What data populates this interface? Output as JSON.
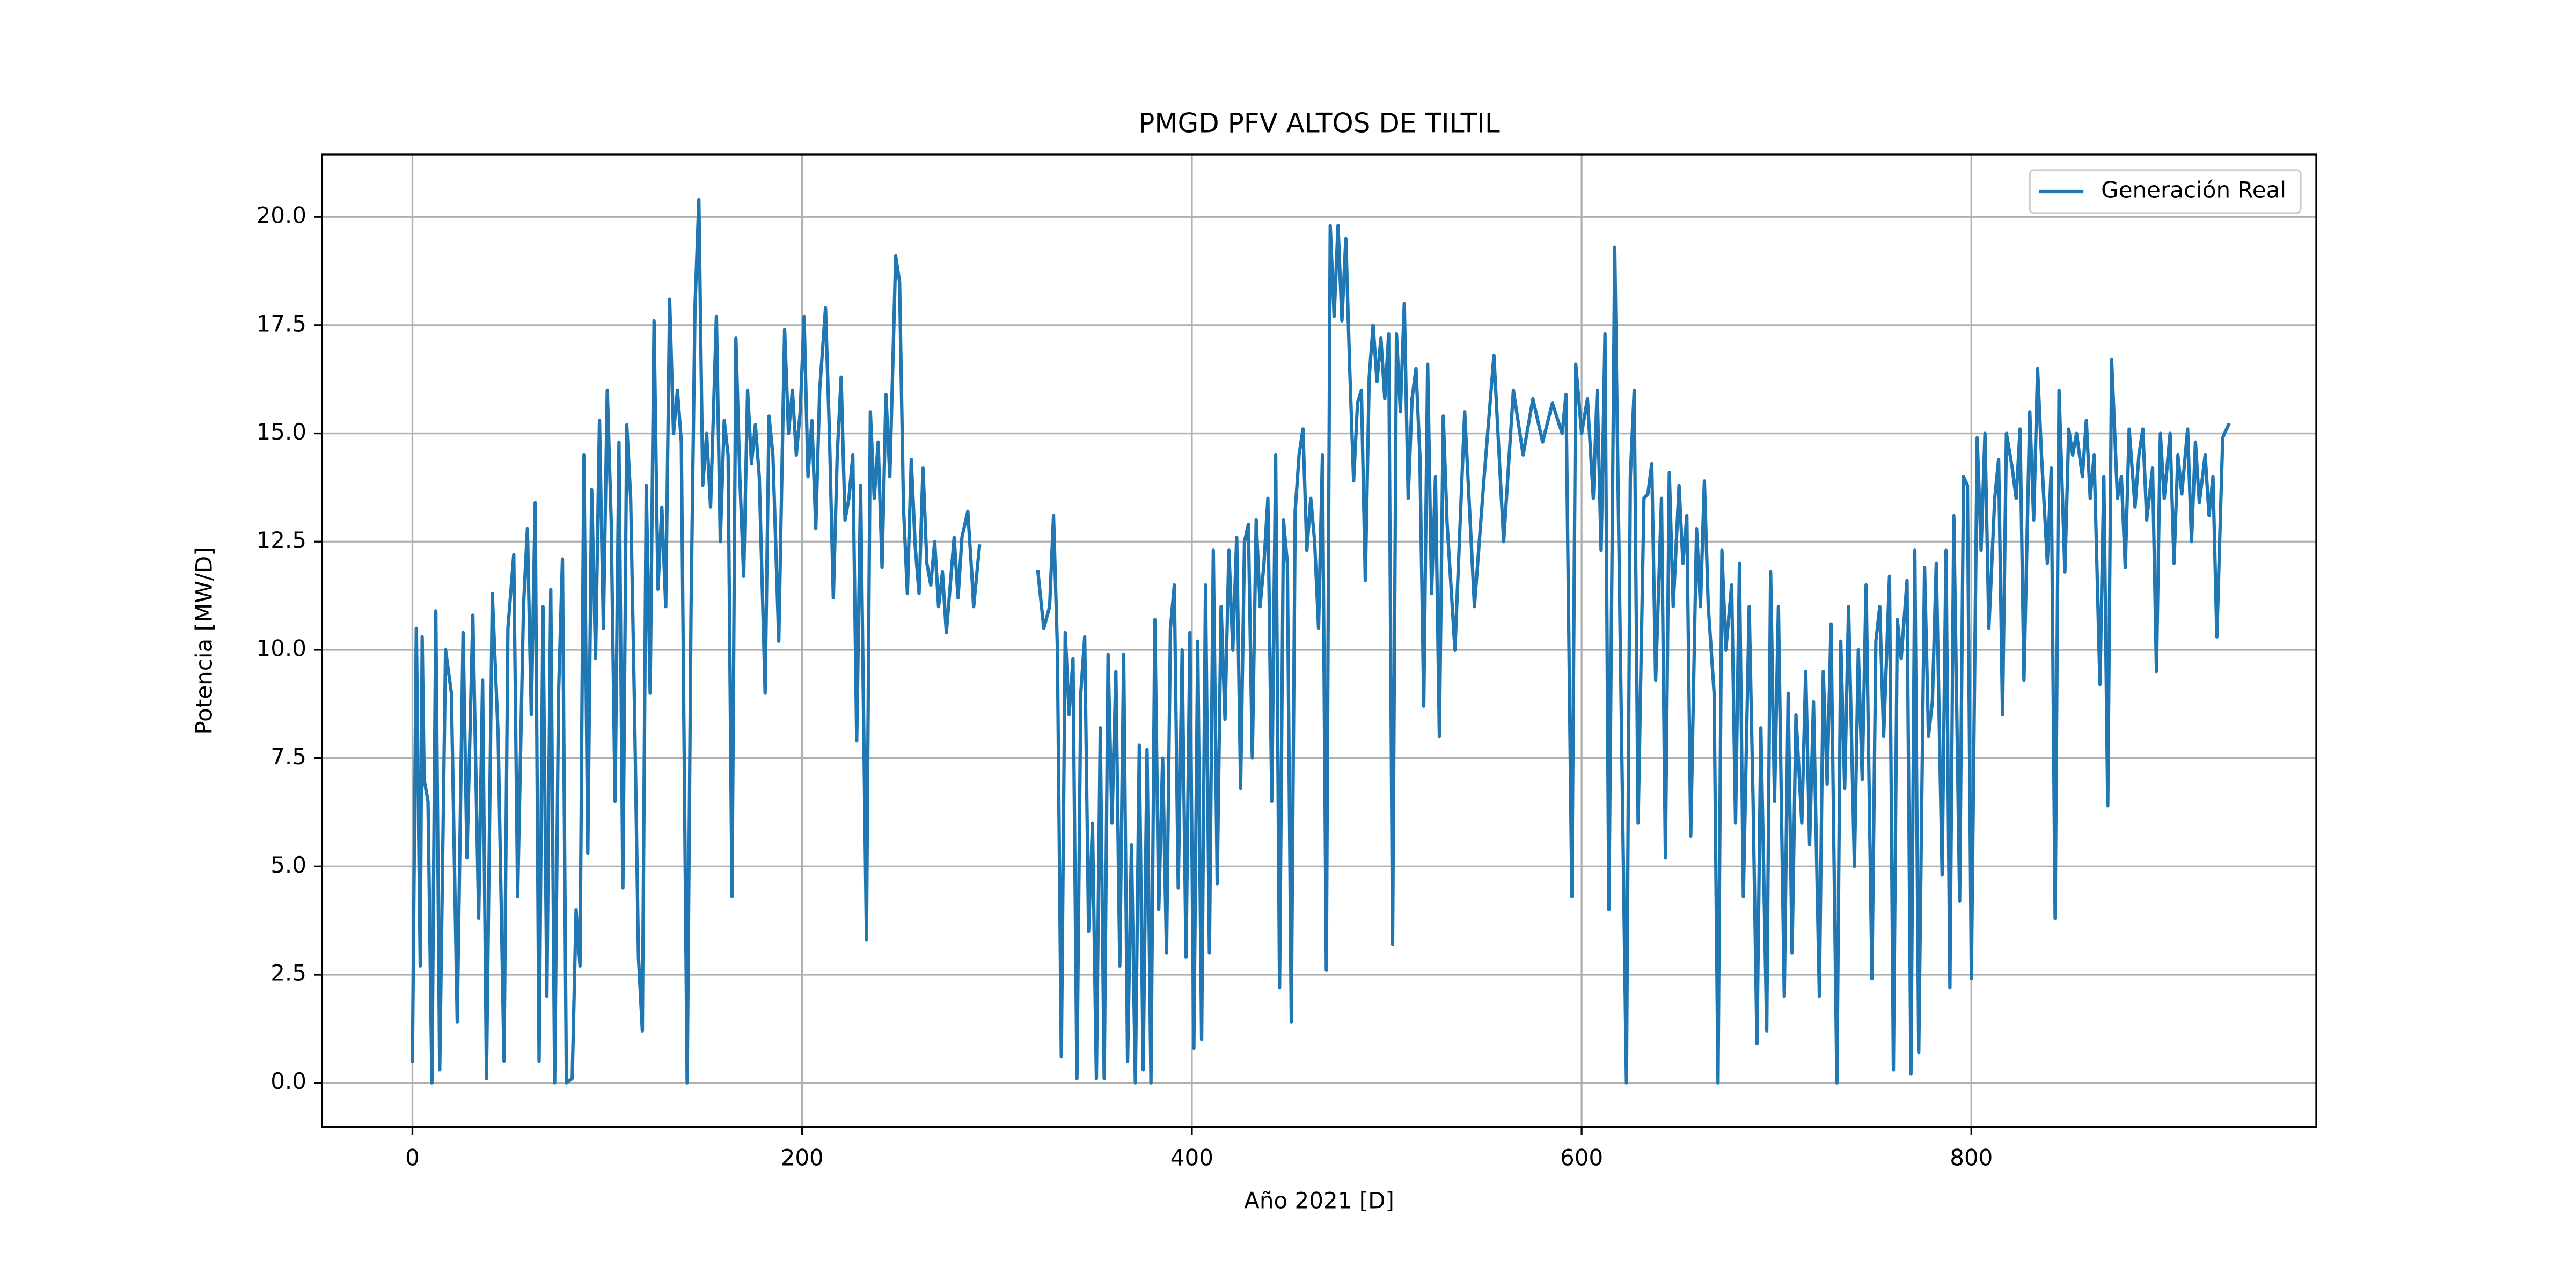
{
  "chart_data": {
    "type": "line",
    "title": "PMGD PFV ALTOS DE TILTIL",
    "xlabel": "Año 2021 [D]",
    "ylabel": "Potencia [MW/D]",
    "x": [
      0,
      2,
      4,
      5,
      6,
      8,
      10,
      12,
      14,
      17,
      20,
      23,
      26,
      28,
      31,
      34,
      36,
      38,
      41,
      44,
      47,
      49,
      52,
      54,
      57,
      59,
      61,
      63,
      65,
      67,
      69,
      71,
      73,
      75,
      77,
      79,
      82,
      84,
      86,
      88,
      90,
      92,
      94,
      96,
      98,
      100,
      102,
      104,
      106,
      108,
      110,
      112,
      114,
      116,
      118,
      120,
      122,
      124,
      126,
      128,
      130,
      132,
      134,
      136,
      138,
      141,
      143,
      145,
      147,
      149,
      151,
      153,
      156,
      158,
      160,
      162,
      164,
      166,
      168,
      170,
      172,
      174,
      176,
      178,
      181,
      183,
      185,
      188,
      191,
      193,
      195,
      197,
      199,
      201,
      203,
      205,
      207,
      209,
      212,
      214,
      216,
      218,
      220,
      222,
      224,
      226,
      228,
      230,
      233,
      235,
      237,
      239,
      241,
      243,
      245,
      248,
      250,
      252,
      254,
      256,
      258,
      260,
      262,
      264,
      266,
      268,
      270,
      272,
      274,
      276,
      278,
      280,
      282,
      285,
      287,
      288,
      291,
      306,
      321,
      324,
      327,
      329,
      331,
      333,
      335,
      337,
      339,
      341,
      343,
      345,
      347,
      349,
      351,
      353,
      355,
      357,
      359,
      361,
      363,
      365,
      367,
      369,
      371,
      373,
      375,
      377,
      379,
      381,
      383,
      385,
      387,
      389,
      391,
      393,
      395,
      397,
      399,
      401,
      403,
      405,
      407,
      409,
      411,
      413,
      415,
      417,
      419,
      421,
      423,
      425,
      427,
      429,
      431,
      433,
      435,
      437,
      439,
      441,
      443,
      445,
      447,
      449,
      451,
      453,
      455,
      457,
      459,
      461,
      463,
      465,
      467,
      469,
      471,
      473,
      475,
      477,
      479,
      481,
      483,
      485,
      487,
      489,
      491,
      493,
      495,
      497,
      499,
      501,
      503,
      505,
      507,
      509,
      511,
      513,
      515,
      517,
      519,
      521,
      523,
      525,
      527,
      529,
      531,
      535,
      540,
      545,
      550,
      555,
      560,
      565,
      570,
      575,
      580,
      585,
      590,
      592,
      595,
      597,
      600,
      603,
      606,
      608,
      610,
      612,
      614,
      617,
      623,
      625,
      627,
      629,
      632,
      634,
      636,
      638,
      641,
      643,
      645,
      647,
      650,
      652,
      654,
      656,
      659,
      661,
      663,
      665,
      668,
      670,
      672,
      674,
      677,
      679,
      681,
      683,
      686,
      688,
      690,
      692,
      695,
      697,
      699,
      701,
      704,
      706,
      708,
      710,
      713,
      715,
      717,
      719,
      722,
      724,
      726,
      728,
      731,
      733,
      735,
      737,
      740,
      742,
      744,
      746,
      749,
      751,
      753,
      755,
      758,
      760,
      762,
      764,
      767,
      769,
      771,
      773,
      776,
      778,
      780,
      782,
      785,
      787,
      789,
      791,
      794,
      796,
      798,
      800,
      803,
      805,
      807,
      809,
      812,
      814,
      816,
      818,
      821,
      823,
      825,
      827,
      830,
      832,
      834,
      836,
      839,
      841,
      843,
      845,
      848,
      850,
      852,
      854,
      857,
      859,
      861,
      863,
      866,
      868,
      870,
      872,
      875,
      877,
      879,
      881,
      884,
      886,
      888,
      890,
      893,
      895,
      897,
      899,
      902,
      904,
      906,
      908,
      911,
      913,
      915,
      917,
      920,
      922,
      924,
      926,
      929,
      932
    ],
    "series": [
      {
        "name": "Generación Real",
        "color": "#1f77b4",
        "values": [
          0.5,
          10.5,
          2.7,
          10.3,
          7,
          6.5,
          0,
          10.9,
          0.3,
          10,
          9,
          1.4,
          10.4,
          5.2,
          10.8,
          3.8,
          9.3,
          0.1,
          11.3,
          8,
          0.5,
          10.5,
          12.2,
          4.3,
          11,
          12.8,
          8.5,
          13.4,
          0.5,
          11,
          2,
          11.4,
          0,
          9,
          12.1,
          0,
          0.1,
          4,
          2.7,
          14.5,
          5.3,
          13.7,
          9.8,
          15.3,
          10.5,
          16,
          13,
          6.5,
          14.8,
          4.5,
          15.2,
          13.5,
          8.6,
          2.9,
          1.2,
          13.8,
          9,
          17.6,
          11.4,
          13.3,
          11,
          18.1,
          15,
          16,
          14.8,
          0,
          11,
          17.9,
          20.4,
          13.8,
          15,
          13.3,
          17.7,
          12.5,
          15.3,
          14.5,
          4.3,
          17.2,
          14,
          11.7,
          16,
          14.3,
          15.2,
          14,
          9,
          15.4,
          14.5,
          10.2,
          17.4,
          15,
          16,
          14.5,
          15.5,
          17.7,
          14,
          15.3,
          12.8,
          16,
          17.9,
          15,
          11.2,
          14.5,
          16.3,
          13,
          13.5,
          14.5,
          7.9,
          13.8,
          3.3,
          15.5,
          13.5,
          14.8,
          11.9,
          15.9,
          14,
          19.1,
          18.5,
          13.3,
          11.3,
          14.4,
          12.4,
          11.3,
          14.2,
          12,
          11.5,
          12.5,
          11,
          11.8,
          10.4,
          11.5,
          12.6,
          11.2,
          12.6,
          13.2,
          11.8,
          11,
          12.4,
          null,
          11.8,
          10.5,
          11,
          13.1,
          10,
          0.6,
          10.4,
          8.5,
          9.8,
          0.1,
          9,
          10.3,
          3.5,
          6,
          0.1,
          8.2,
          0.1,
          9.9,
          6,
          9.5,
          2.7,
          9.9,
          0.5,
          5.5,
          0,
          7.8,
          0.3,
          7.7,
          0,
          10.7,
          4,
          7.5,
          3,
          10.5,
          11.5,
          4.5,
          10,
          2.9,
          10.4,
          0.8,
          10.2,
          1,
          11.5,
          3,
          12.3,
          4.6,
          11,
          8.4,
          12.3,
          10,
          12.6,
          6.8,
          12.5,
          12.9,
          7.5,
          13,
          11,
          12,
          13.5,
          6.5,
          14.5,
          2.2,
          13,
          12,
          1.4,
          13.2,
          14.5,
          15.1,
          12.3,
          13.5,
          12.5,
          10.5,
          14.5,
          2.6,
          19.8,
          17.7,
          19.8,
          17.6,
          19.5,
          16.5,
          13.9,
          15.7,
          16,
          11.6,
          16.3,
          17.5,
          16.2,
          17.2,
          15.8,
          17.3,
          3.2,
          17.3,
          15.5,
          18,
          13.5,
          15.8,
          16.5,
          14.5,
          8.7,
          16.6,
          11.3,
          14,
          8,
          15.4,
          12.9,
          10,
          15.5,
          11,
          14,
          16.8,
          12.5,
          16,
          14.5,
          15.8,
          14.8,
          15.7,
          15,
          15.9,
          4.3,
          16.6,
          15,
          15.8,
          13.5,
          16,
          12.3,
          17.3,
          4,
          19.3,
          0,
          14,
          16,
          6,
          13.5,
          13.6,
          14.3,
          9.3,
          13.5,
          5.2,
          14.1,
          11,
          13.8,
          12,
          13.1,
          5.7,
          12.8,
          11,
          13.9,
          11,
          9,
          0,
          12.3,
          10,
          11.5,
          6,
          12,
          4.3,
          11,
          6.5,
          0.9,
          8.2,
          1.2,
          11.8,
          6.5,
          11,
          2,
          9,
          3,
          8.5,
          6,
          9.5,
          5.5,
          8.8,
          2,
          9.5,
          6.9,
          10.6,
          0,
          10.2,
          6.8,
          11,
          5,
          10,
          7,
          11.5,
          2.4,
          10.2,
          11,
          8,
          11.7,
          0.3,
          10.7,
          9.8,
          11.6,
          0.2,
          12.3,
          0.7,
          11.9,
          8,
          8.8,
          12,
          4.8,
          12.3,
          2.2,
          13.1,
          4.2,
          14,
          13.8,
          2.4,
          14.9,
          12.3,
          15,
          10.5,
          13.5,
          14.4,
          8.5,
          15,
          14.2,
          13.5,
          15.1,
          9.3,
          15.5,
          13,
          16.5,
          14.5,
          12,
          14.2,
          3.8,
          16,
          11.8,
          15.1,
          14.5,
          15,
          14,
          15.3,
          13.5,
          14.5,
          9.2,
          14,
          6.4,
          16.7,
          13.5,
          14,
          11.9,
          15.1,
          13.3,
          14.5,
          15.1,
          13,
          14.2,
          9.5,
          15,
          13.5,
          15,
          12,
          14.5,
          13.6,
          15.1,
          12.5,
          14.8,
          13.4,
          14.5,
          13.1,
          14,
          10.3,
          14.9,
          15.2
        ]
      }
    ],
    "xlim": [
      -46.4,
      977
    ],
    "ylim": [
      -1.02,
      21.44
    ],
    "xticks": [
      0,
      200,
      400,
      600,
      800
    ],
    "yticks": [
      {
        "value": 0,
        "label": "0.0"
      },
      2.5,
      {
        "value": 5,
        "label": "5.0"
      },
      7.5,
      {
        "value": 10,
        "label": "10.0"
      },
      12.5,
      {
        "value": 15,
        "label": "15.0"
      },
      17.5,
      {
        "value": 20,
        "label": "20.0"
      }
    ],
    "grid": true,
    "legend": "upper right"
  }
}
